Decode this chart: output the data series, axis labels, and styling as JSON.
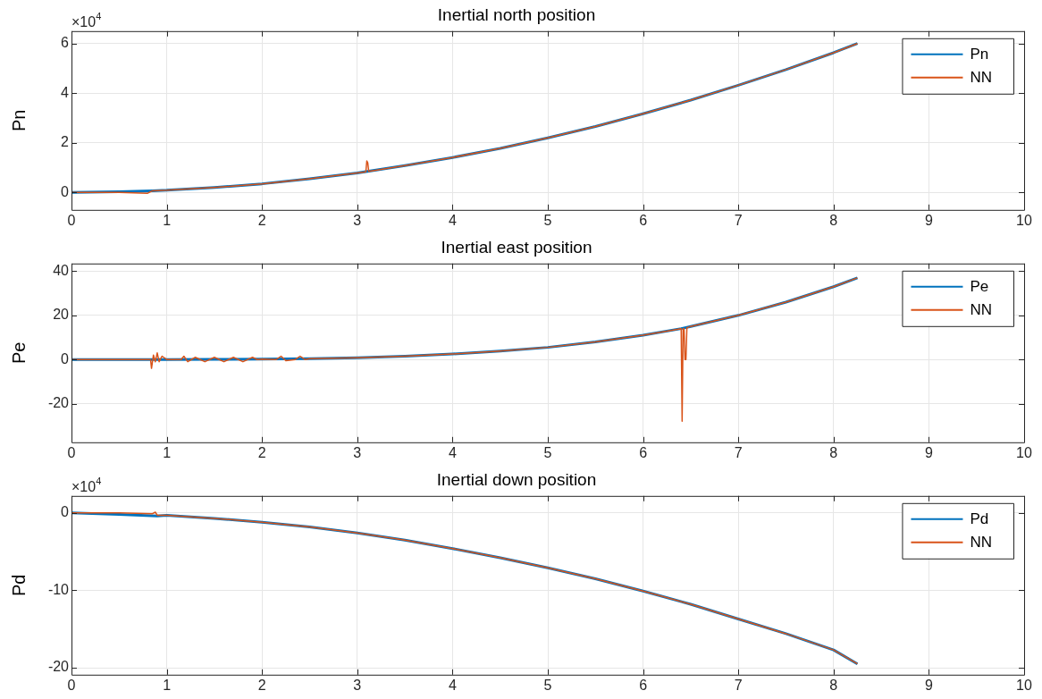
{
  "chart_data": [
    {
      "type": "line",
      "title": "Inertial north position",
      "ylabel": "Pn",
      "annotations": [
        "×10$^{4}$"
      ],
      "xlim": [
        0,
        10
      ],
      "xticks": [
        0,
        1,
        2,
        3,
        4,
        5,
        6,
        7,
        8,
        9,
        10
      ],
      "ylim": [
        -0.7,
        6.5
      ],
      "yticks": [
        0,
        2,
        4,
        6
      ],
      "grid": true,
      "legend": "top right",
      "marker": "none",
      "line_style": "solid",
      "series": [
        {
          "name": "Pn",
          "color": "#0072bd",
          "x": [
            0,
            0.5,
            0.85,
            1,
            1.5,
            2,
            2.5,
            3,
            3.5,
            4,
            4.5,
            5,
            5.5,
            6,
            6.5,
            7,
            7.5,
            8,
            8.25
          ],
          "values": [
            0,
            0.03,
            0.07,
            0.09,
            0.2,
            0.35,
            0.55,
            0.79,
            1.08,
            1.41,
            1.78,
            2.2,
            2.66,
            3.17,
            3.72,
            4.32,
            4.95,
            5.63,
            6.0
          ]
        },
        {
          "name": "NN",
          "color": "#d95319",
          "x": [
            0,
            0.5,
            0.8,
            0.85,
            1,
            1.5,
            2,
            2.5,
            3,
            3.09,
            3.1,
            3.11,
            3.12,
            3.5,
            4,
            4.5,
            5,
            5.5,
            6,
            6.5,
            7,
            7.5,
            8,
            8.25
          ],
          "values": [
            0,
            0,
            -0.03,
            0.07,
            0.09,
            0.2,
            0.35,
            0.55,
            0.79,
            0.83,
            1.27,
            1.2,
            0.85,
            1.08,
            1.41,
            1.78,
            2.2,
            2.66,
            3.17,
            3.72,
            4.32,
            4.95,
            5.63,
            6.0
          ]
        }
      ]
    },
    {
      "type": "line",
      "title": "Inertial east position",
      "ylabel": "Pe",
      "xlim": [
        0,
        10
      ],
      "xticks": [
        0,
        1,
        2,
        3,
        4,
        5,
        6,
        7,
        8,
        9,
        10
      ],
      "ylim": [
        -37.5,
        43.5
      ],
      "yticks": [
        -20,
        0,
        20,
        40
      ],
      "grid": true,
      "legend": "top right",
      "marker": "none",
      "line_style": "solid",
      "series": [
        {
          "name": "Pe",
          "color": "#0072bd",
          "x": [
            0,
            0.5,
            1,
            1.5,
            2,
            2.5,
            3,
            3.5,
            4,
            4.5,
            5,
            5.5,
            6,
            6.4,
            6.5,
            7,
            7.5,
            8,
            8.25
          ],
          "values": [
            0,
            0,
            0,
            0.1,
            0.2,
            0.4,
            0.8,
            1.5,
            2.5,
            3.8,
            5.5,
            8,
            11,
            14,
            15,
            20,
            26,
            33,
            37
          ]
        },
        {
          "name": "NN",
          "color": "#d95319",
          "x": [
            0,
            0.5,
            0.83,
            0.84,
            0.86,
            0.88,
            0.9,
            0.92,
            0.95,
            1.0,
            1.15,
            1.18,
            1.22,
            1.3,
            1.4,
            1.5,
            1.6,
            1.7,
            1.8,
            1.9,
            1.95,
            2.0,
            2.15,
            2.2,
            2.25,
            2.35,
            2.4,
            2.45,
            2.5,
            3,
            3.5,
            4,
            4.5,
            5,
            5.5,
            6,
            6.4,
            6.41,
            6.42,
            6.43,
            6.44,
            6.45,
            6.46,
            6.47,
            6.5,
            7,
            7.5,
            8,
            8.25
          ],
          "values": [
            0,
            0,
            0,
            -4,
            2,
            -1,
            3,
            -1,
            1.5,
            0,
            0,
            1.5,
            -1,
            1,
            -1,
            1,
            -1,
            1,
            -1,
            1,
            0,
            0.2,
            0,
            1.5,
            -0.5,
            0,
            1.5,
            0,
            0.4,
            0.8,
            1.5,
            2.5,
            3.8,
            5.5,
            8,
            11,
            14,
            -28,
            14,
            14,
            0,
            0,
            14.5,
            14.5,
            15,
            20,
            26,
            33,
            37
          ]
        }
      ]
    },
    {
      "type": "line",
      "title": "Inertial down position",
      "ylabel": "Pd",
      "annotations": [
        "×10$^{4}$"
      ],
      "xlim": [
        0,
        10
      ],
      "xticks": [
        0,
        1,
        2,
        3,
        4,
        5,
        6,
        7,
        8,
        9,
        10
      ],
      "ylim": [
        -20.9,
        2.2
      ],
      "yticks": [
        -20,
        -10,
        0
      ],
      "grid": true,
      "legend": "top right",
      "marker": "none",
      "line_style": "solid",
      "series": [
        {
          "name": "Pd",
          "color": "#0072bd",
          "x": [
            0,
            0.5,
            0.9,
            1,
            1.5,
            2,
            2.5,
            3,
            3.5,
            4,
            4.5,
            5,
            5.5,
            6,
            6.5,
            7,
            7.5,
            8,
            8.25
          ],
          "values": [
            0,
            -0.2,
            -0.4,
            -0.3,
            -0.7,
            -1.2,
            -1.8,
            -2.6,
            -3.5,
            -4.6,
            -5.8,
            -7.1,
            -8.5,
            -10.1,
            -11.8,
            -13.7,
            -15.6,
            -17.7,
            -19.5
          ]
        },
        {
          "name": "NN",
          "color": "#d95319",
          "x": [
            0,
            0.5,
            0.85,
            0.88,
            0.9,
            1,
            1.5,
            2,
            2.5,
            3,
            3.5,
            4,
            4.5,
            5,
            5.5,
            6,
            6.5,
            7,
            7.5,
            8,
            8.25
          ],
          "values": [
            0,
            0,
            -0.1,
            0.1,
            -0.3,
            -0.3,
            -0.7,
            -1.2,
            -1.8,
            -2.6,
            -3.5,
            -4.6,
            -5.8,
            -7.1,
            -8.5,
            -10.1,
            -11.8,
            -13.7,
            -15.6,
            -17.7,
            -19.5
          ]
        }
      ]
    }
  ]
}
